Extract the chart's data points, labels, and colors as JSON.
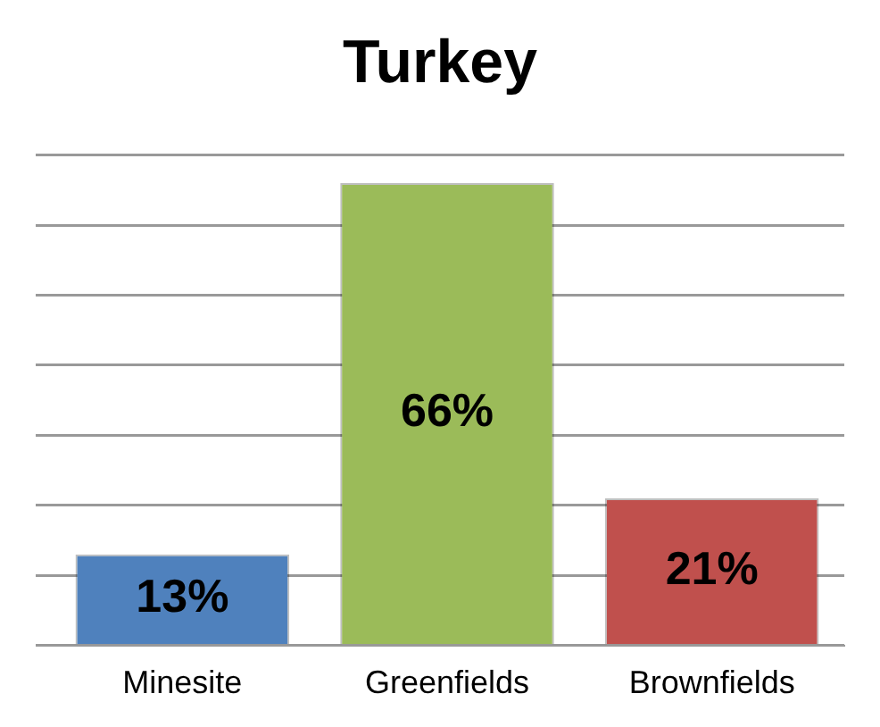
{
  "chart_data": {
    "type": "bar",
    "title": "Turkey",
    "categories": [
      "Minesite",
      "Greenfields",
      "Brownfields"
    ],
    "values": [
      13,
      66,
      21
    ],
    "value_labels": [
      "13%",
      "66%",
      "21%"
    ],
    "colors": [
      "#4f81bd",
      "#9bbb59",
      "#c0504d"
    ],
    "tick_labels": "x",
    "grid": "y",
    "legend": false
  }
}
